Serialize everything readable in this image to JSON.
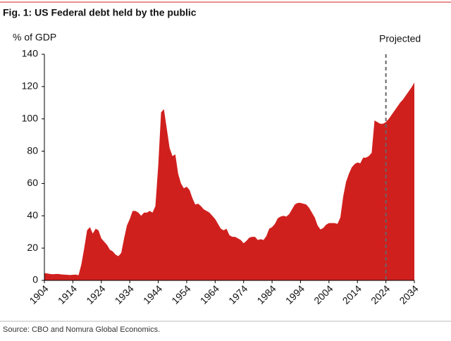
{
  "chart_data": {
    "type": "area",
    "title": "Fig. 1: US Federal debt held by the public",
    "y_label": "% of GDP",
    "source": "Source: CBO and Nomura Global Economics.",
    "annotation": {
      "text": "Projected",
      "x": 2024
    },
    "color": "#d0201e",
    "xlim": [
      1904,
      2034
    ],
    "xticks": [
      1904,
      1914,
      1924,
      1934,
      1944,
      1954,
      1964,
      1974,
      1984,
      1994,
      2004,
      2014,
      2024,
      2034
    ],
    "ylim": [
      0,
      140
    ],
    "yticks": [
      0,
      20,
      40,
      60,
      80,
      100,
      120,
      140
    ],
    "x": [
      1904,
      1905,
      1906,
      1907,
      1908,
      1909,
      1910,
      1911,
      1912,
      1913,
      1914,
      1915,
      1916,
      1917,
      1918,
      1919,
      1920,
      1921,
      1922,
      1923,
      1924,
      1925,
      1926,
      1927,
      1928,
      1929,
      1930,
      1931,
      1932,
      1933,
      1934,
      1935,
      1936,
      1937,
      1938,
      1939,
      1940,
      1941,
      1942,
      1943,
      1944,
      1945,
      1946,
      1947,
      1948,
      1949,
      1950,
      1951,
      1952,
      1953,
      1954,
      1955,
      1956,
      1957,
      1958,
      1959,
      1960,
      1961,
      1962,
      1963,
      1964,
      1965,
      1966,
      1967,
      1968,
      1969,
      1970,
      1971,
      1972,
      1973,
      1974,
      1975,
      1976,
      1977,
      1978,
      1979,
      1980,
      1981,
      1982,
      1983,
      1984,
      1985,
      1986,
      1987,
      1988,
      1989,
      1990,
      1991,
      1992,
      1993,
      1994,
      1995,
      1996,
      1997,
      1998,
      1999,
      2000,
      2001,
      2002,
      2003,
      2004,
      2005,
      2006,
      2007,
      2008,
      2009,
      2010,
      2011,
      2012,
      2013,
      2014,
      2015,
      2016,
      2017,
      2018,
      2019,
      2020,
      2021,
      2022,
      2023,
      2024,
      2025,
      2026,
      2027,
      2028,
      2029,
      2030,
      2031,
      2032,
      2033,
      2034
    ],
    "values": [
      4.5,
      4.3,
      4,
      3.8,
      4,
      4,
      3.7,
      3.6,
      3.5,
      3.3,
      3.5,
      3.6,
      3.2,
      10,
      20,
      31,
      33,
      29,
      32,
      31,
      26,
      24,
      22,
      19,
      18,
      16,
      15,
      17,
      26,
      34,
      38,
      43,
      43,
      42,
      40,
      42,
      42,
      43,
      42,
      46,
      71,
      104,
      106,
      94,
      82,
      77,
      78,
      66,
      60,
      57,
      58,
      56,
      51,
      47,
      47.5,
      46,
      44,
      43,
      42,
      40,
      38,
      35,
      32,
      31,
      32,
      28,
      27,
      27,
      26,
      25,
      23,
      24.5,
      26.5,
      27,
      27,
      25,
      25.5,
      25,
      27.5,
      32,
      33,
      35,
      38.5,
      39.5,
      40,
      39.5,
      41,
      44,
      47,
      48,
      48,
      47.5,
      47,
      45,
      42,
      39,
      34,
      31.5,
      32.5,
      34.5,
      35.5,
      35.5,
      35.5,
      35,
      39,
      52,
      61,
      66,
      70,
      72,
      73,
      72.5,
      76,
      76,
      77,
      79,
      99,
      98,
      97,
      97,
      98,
      100,
      102.5,
      105,
      107.5,
      110,
      112,
      114.5,
      117,
      119.5,
      122.5
    ]
  }
}
